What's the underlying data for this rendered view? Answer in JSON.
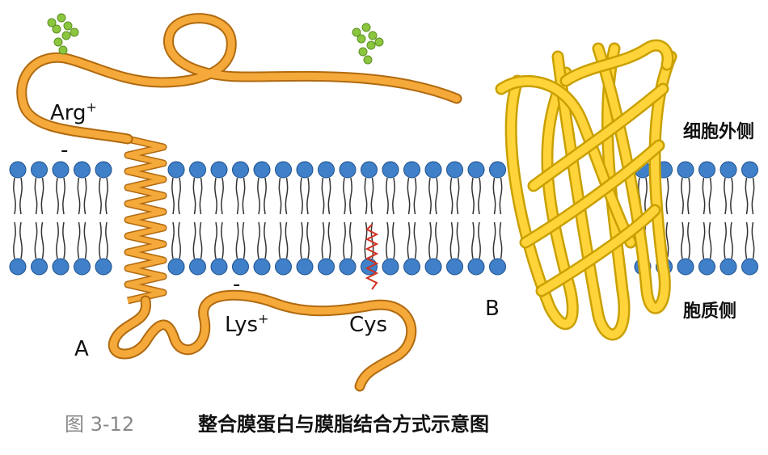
{
  "labels": {
    "arg": {
      "text": "Arg",
      "charge": "+"
    },
    "arg_minus": "-",
    "lys": {
      "text": "Lys",
      "charge": "+"
    },
    "lys_minus": "-",
    "cys": "Cys",
    "a": "A",
    "b": "B",
    "outside": "细胞外侧",
    "cytoplasm": "胞质侧"
  },
  "caption": {
    "number": "图 3-12",
    "title": "整合膜蛋白与膜脂结合方式示意图"
  }
}
